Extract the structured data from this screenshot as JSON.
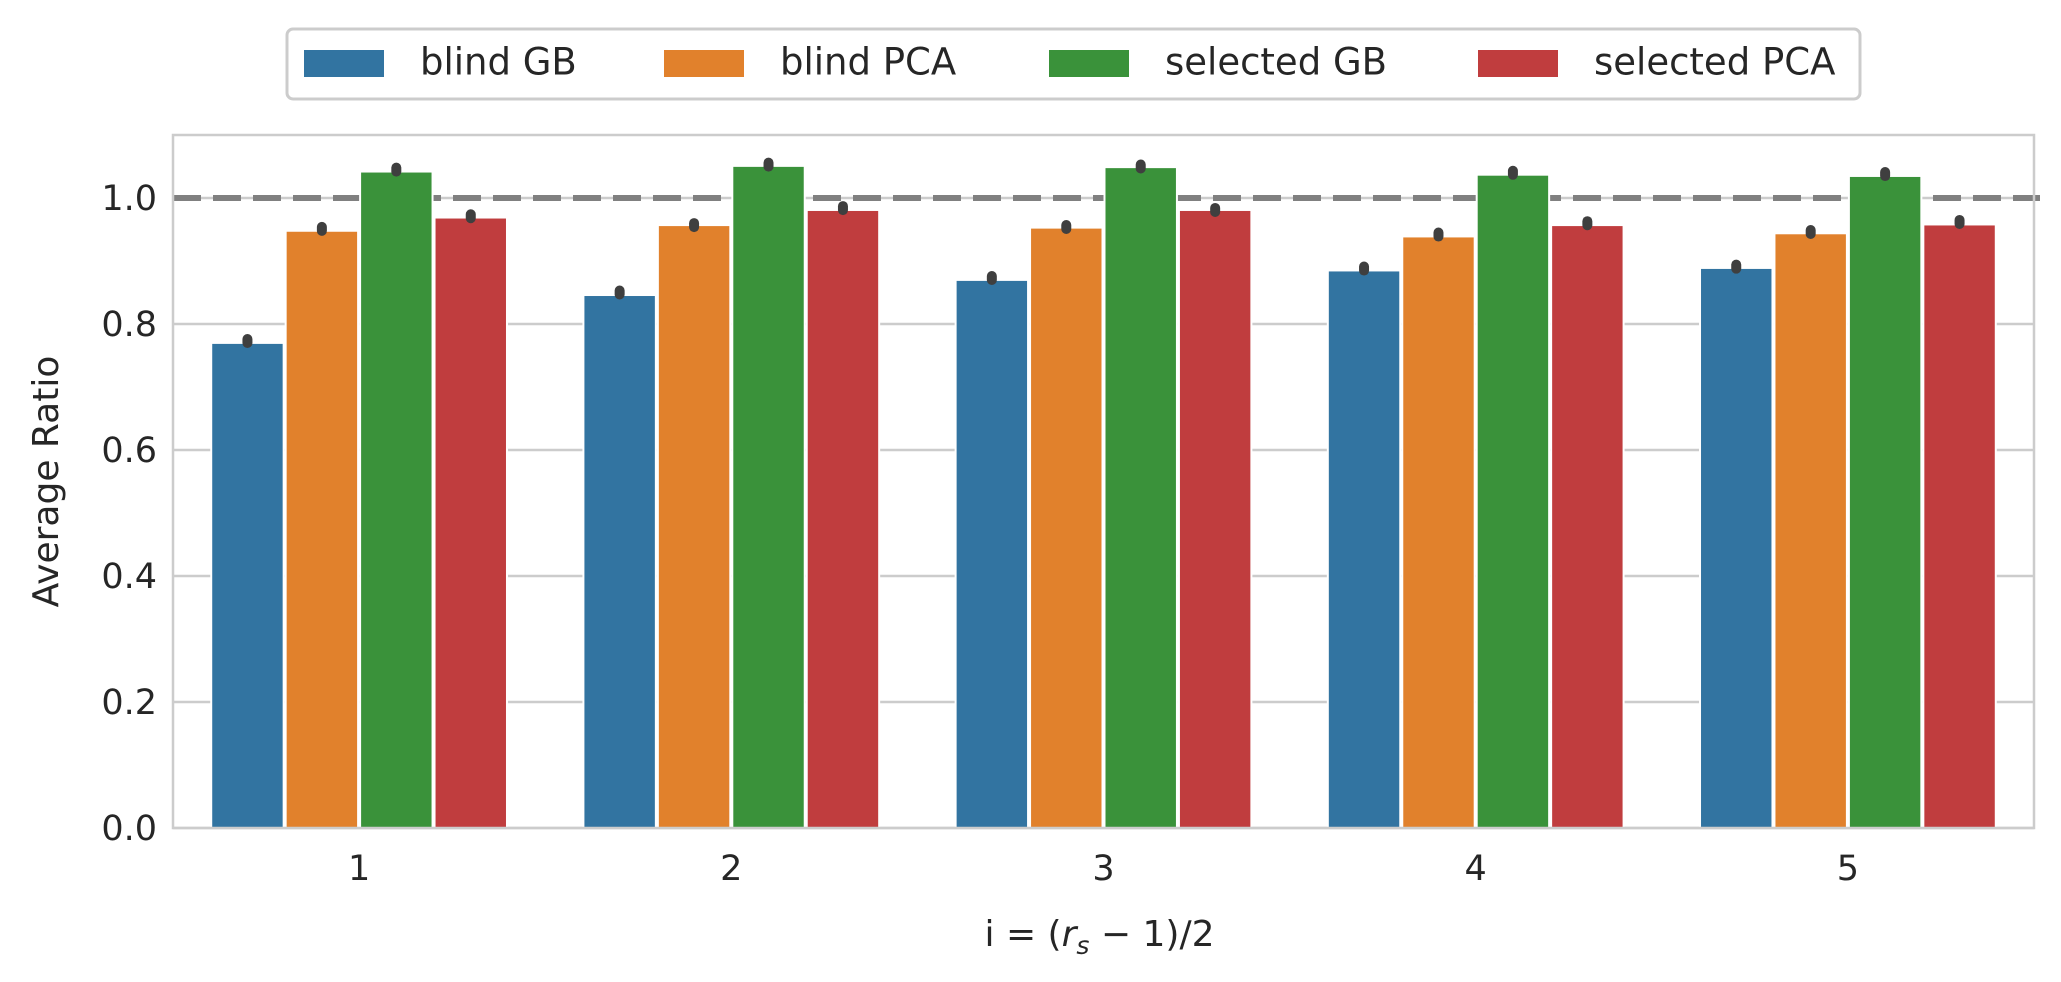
{
  "chart_data": {
    "type": "bar",
    "title": "",
    "xlabel": "i = (r_s − 1)/2",
    "ylabel": "Average Ratio",
    "categories": [
      "1",
      "2",
      "3",
      "4",
      "5"
    ],
    "ylim": [
      0,
      1.1
    ],
    "yticks": [
      "0.0",
      "0.2",
      "0.4",
      "0.6",
      "0.8",
      "1.0"
    ],
    "grid": "horizontal",
    "legend_position": "top-center, outside",
    "reference_line": {
      "y": 1.0,
      "style": "dashed",
      "color": "#808080"
    },
    "series": [
      {
        "name": "blind GB",
        "color": "#3274a1",
        "values": [
          0.77,
          0.846,
          0.87,
          0.885,
          0.889
        ],
        "err": [
          0.773,
          0.85,
          0.873,
          0.888,
          0.891
        ]
      },
      {
        "name": "blind PCA",
        "color": "#e1812c",
        "values": [
          0.948,
          0.957,
          0.953,
          0.939,
          0.944
        ],
        "err": [
          0.951,
          0.957,
          0.954,
          0.942,
          0.946
        ]
      },
      {
        "name": "selected GB",
        "color": "#3a923a",
        "values": [
          1.042,
          1.051,
          1.049,
          1.037,
          1.035
        ],
        "err": [
          1.045,
          1.053,
          1.05,
          1.04,
          1.038
        ]
      },
      {
        "name": "selected PCA",
        "color": "#c03d3e",
        "values": [
          0.969,
          0.981,
          0.981,
          0.957,
          0.958
        ],
        "err": [
          0.971,
          0.984,
          0.981,
          0.96,
          0.962
        ]
      }
    ]
  }
}
